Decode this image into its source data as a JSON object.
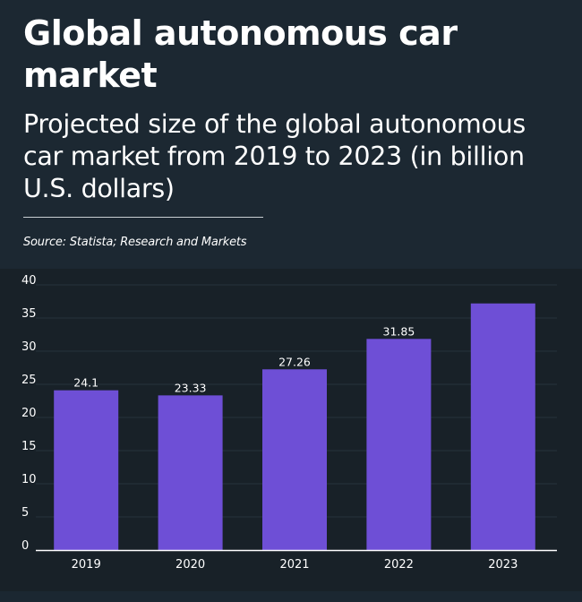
{
  "header": {
    "title": "Global autonomous car market",
    "subtitle": "Projected size of the global autonomous car market from 2019 to 2023 (in billion U.S. dollars)",
    "source": "Source: Statista; Research and Markets"
  },
  "colors": {
    "background": "#1b2731",
    "chart_background": "#182128",
    "bar": "#6e4fd6",
    "text": "#ffffff"
  },
  "chart_data": {
    "type": "bar",
    "categories": [
      "2019",
      "2020",
      "2021",
      "2022",
      "2023"
    ],
    "values": [
      24.1,
      23.33,
      27.26,
      31.85,
      37.2
    ],
    "data_labels": [
      "24.1",
      "23.33",
      "27.26",
      "31.85",
      ""
    ],
    "ylim": [
      0,
      40
    ],
    "yticks": [
      0,
      5,
      10,
      15,
      20,
      25,
      30,
      35,
      40
    ],
    "xlabel": "",
    "ylabel": "",
    "grid": true,
    "legend": "none"
  }
}
